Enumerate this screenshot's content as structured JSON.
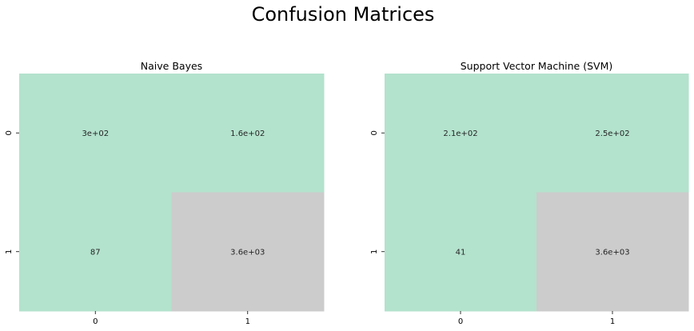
{
  "title": "Confusion Matrices",
  "colors": {
    "low": "#b3e2cd",
    "high": "#cccccc",
    "background": "#ffffff",
    "text": "#262626"
  },
  "chart_data": [
    {
      "type": "heatmap",
      "title": "Naive Bayes",
      "xlabel": "",
      "ylabel": "",
      "x_tick_labels": [
        "0",
        "1"
      ],
      "y_tick_labels": [
        "0",
        "1"
      ],
      "values": [
        [
          300,
          160
        ],
        [
          87,
          3600
        ]
      ],
      "cell_labels": [
        [
          "3e+02",
          "1.6e+02"
        ],
        [
          "87",
          "3.6e+03"
        ]
      ],
      "colormap": [
        "#b3e2cd",
        "#cccccc"
      ],
      "colorbar": false
    },
    {
      "type": "heatmap",
      "title": "Support Vector Machine (SVM)",
      "xlabel": "",
      "ylabel": "",
      "x_tick_labels": [
        "0",
        "1"
      ],
      "y_tick_labels": [
        "0",
        "1"
      ],
      "values": [
        [
          210,
          250
        ],
        [
          41,
          3600
        ]
      ],
      "cell_labels": [
        [
          "2.1e+02",
          "2.5e+02"
        ],
        [
          "41",
          "3.6e+03"
        ]
      ],
      "colormap": [
        "#b3e2cd",
        "#cccccc"
      ],
      "colorbar": false
    }
  ]
}
